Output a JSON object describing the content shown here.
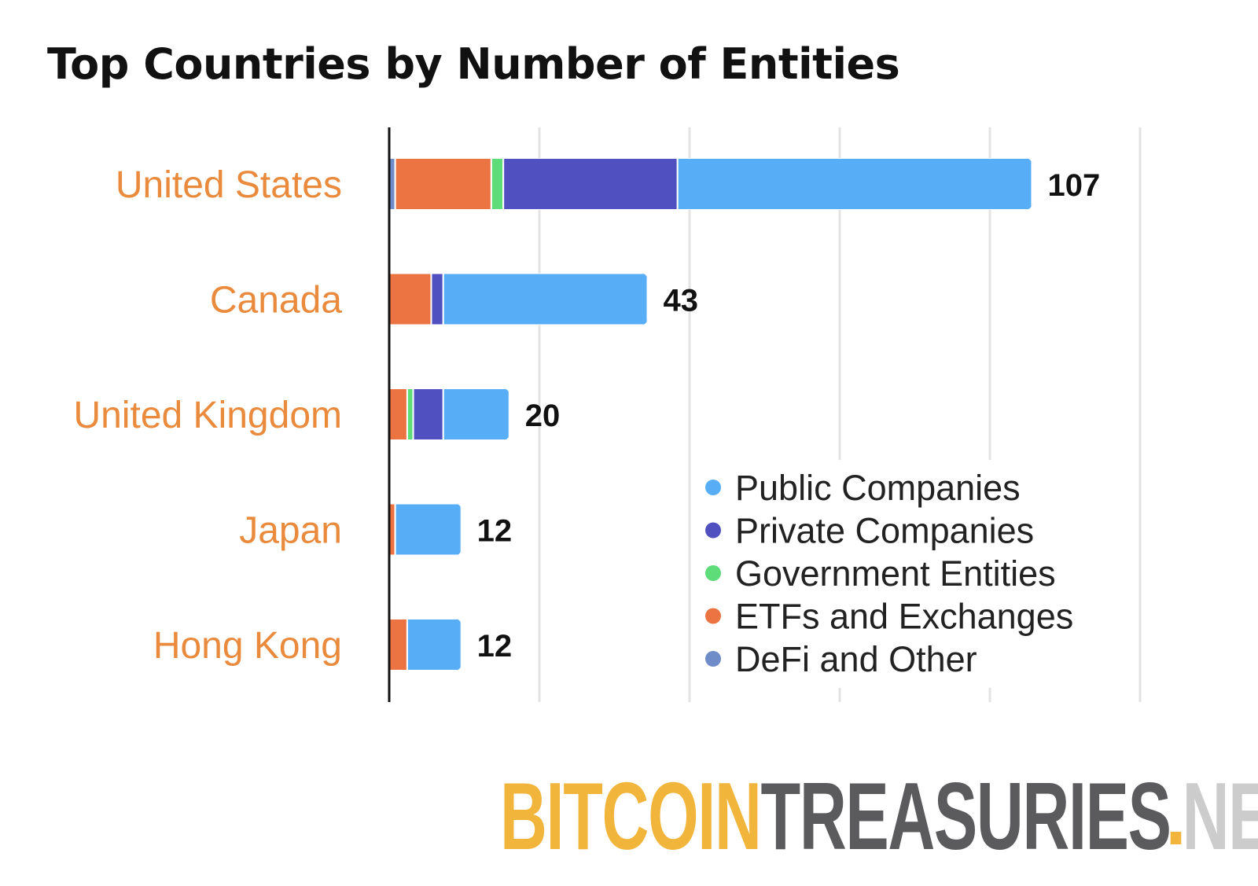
{
  "chart_data": {
    "type": "bar",
    "orientation": "horizontal",
    "stacked": true,
    "title": "Top Countries by Number of Entities",
    "categories": [
      "United States",
      "Canada",
      "United Kingdom",
      "Japan",
      "Hong Kong"
    ],
    "series": [
      {
        "name": "DefI and Other",
        "values": [
          1,
          0,
          0,
          0,
          0
        ]
      },
      {
        "name": "ETFs and Exchanges",
        "values": [
          16,
          7,
          3,
          1,
          3
        ]
      },
      {
        "name": "Government Entities",
        "values": [
          2,
          0,
          1,
          0,
          0
        ]
      },
      {
        "name": "Private Companies",
        "values": [
          29,
          2,
          5,
          0,
          0
        ]
      },
      {
        "name": "Public Companies",
        "values": [
          59,
          34,
          11,
          11,
          9
        ]
      }
    ],
    "totals": [
      "107",
      "43",
      "20",
      "12",
      "12"
    ],
    "xlim": [
      0,
      125
    ],
    "grid": true,
    "legend_position": "bottom-right",
    "legend": [
      "Public Companies",
      "Private Companies",
      "Government Entities",
      "ETFs and Exchanges",
      "DeFi and Other"
    ],
    "colors": {
      "Public Companies": "#58aef6",
      "Private Companies": "#5050c0",
      "Government Entities": "#5fdc7a",
      "ETFs and Exchanges": "#ec7443",
      "DefI and Other": "#6f8cc8",
      "DeFi and Other": "#6f8cc8",
      "category_label": "#e98a3c"
    }
  },
  "branding": {
    "part1": "BITCOIN",
    "part2": "TREASURIES",
    "part3": "NET",
    "colors": {
      "part1": "#f1b53c",
      "part2": "#5b5b5d",
      "part3": "#cccccc",
      "dot": "#f1b53c"
    }
  }
}
